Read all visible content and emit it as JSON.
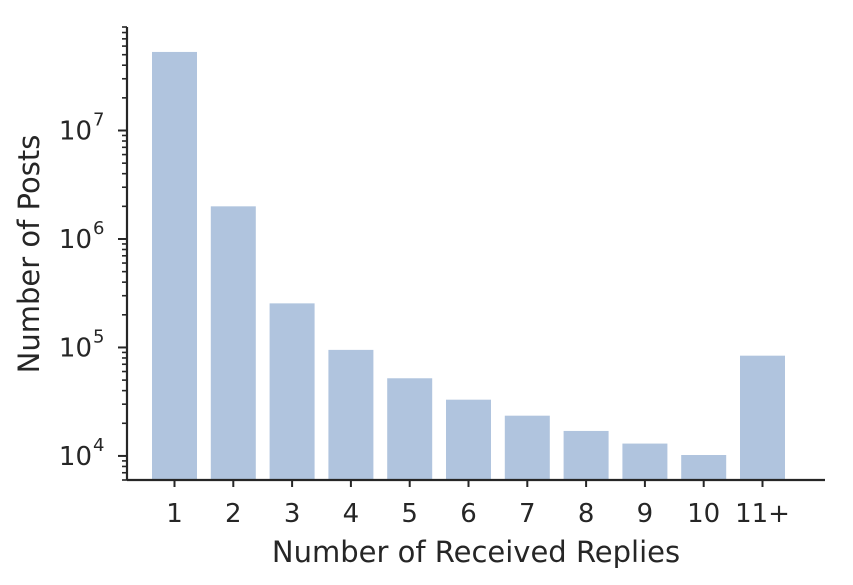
{
  "chart_data": {
    "type": "bar",
    "categories": [
      "1",
      "2",
      "3",
      "4",
      "5",
      "6",
      "7",
      "8",
      "9",
      "10",
      "11+"
    ],
    "values": [
      53000000,
      2000000,
      255000,
      95000,
      52000,
      33000,
      23500,
      17000,
      13000,
      10200,
      84000
    ],
    "xlabel": "Number of Received Replies",
    "ylabel": "Number of Posts",
    "yscale": "log",
    "ylim": [
      6000,
      90000000
    ],
    "ytick_values": [
      10000,
      100000,
      1000000,
      10000000
    ],
    "ytick_labels": [
      {
        "base": "10",
        "exp": "4"
      },
      {
        "base": "10",
        "exp": "5"
      },
      {
        "base": "10",
        "exp": "6"
      },
      {
        "base": "10",
        "exp": "7"
      }
    ],
    "bar_color": "#b0c4de",
    "axis_color": "#262626",
    "grid": false,
    "legend": "none"
  }
}
